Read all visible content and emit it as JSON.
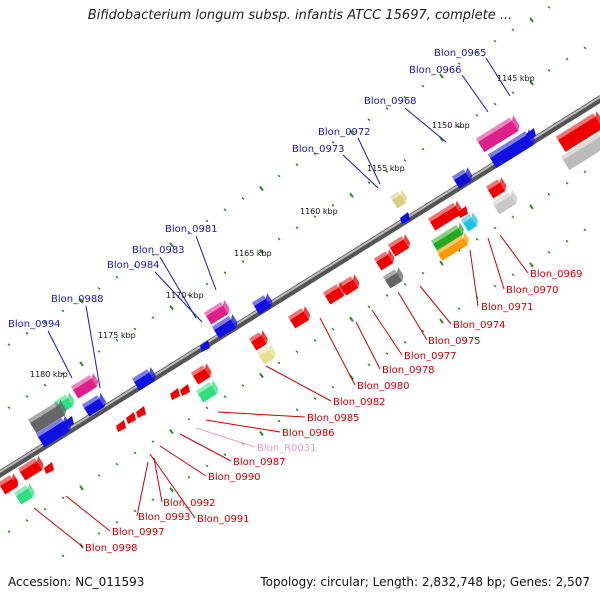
{
  "title": "Bifidobacterium longum subsp. infantis ATCC 15697, complete ...",
  "footer": {
    "accession": "Accession: NC_011593",
    "summary": "Topology: circular; Length: 2,832,748 bp; Genes: 2,507"
  },
  "colors": {
    "forward_label": "#1a1aaa",
    "reverse_label": "#cc0000",
    "rna_label": "#e8a0c0",
    "backbone": "#8a8a8a",
    "tick": "#2a8a2a"
  },
  "kbp_labels": [
    "1145 kbp",
    "1150 kbp",
    "1155 kbp",
    "1160 kbp",
    "1165 kbp",
    "1170 kbp",
    "1175 kbp",
    "1180 kbp"
  ],
  "top_labels": [
    "Blon_0965",
    "Blon_0966",
    "Blon_0968",
    "Blon_0972",
    "Blon_0973",
    "Blon_0981",
    "Blon_0983",
    "Blon_0984",
    "Blon_0988",
    "Blon_0994"
  ],
  "bottom_labels": [
    "Blon_0969",
    "Blon_0970",
    "Blon_0971",
    "Blon_0974",
    "Blon_0975",
    "Blon_0977",
    "Blon_0978",
    "Blon_0980",
    "Blon_0982",
    "Blon_0985",
    "Blon_0986",
    "Blon_R0031",
    "Blon_0987",
    "Blon_0990",
    "Blon_0991",
    "Blon_0992",
    "Blon_0993",
    "Blon_0997",
    "Blon_0998"
  ]
}
